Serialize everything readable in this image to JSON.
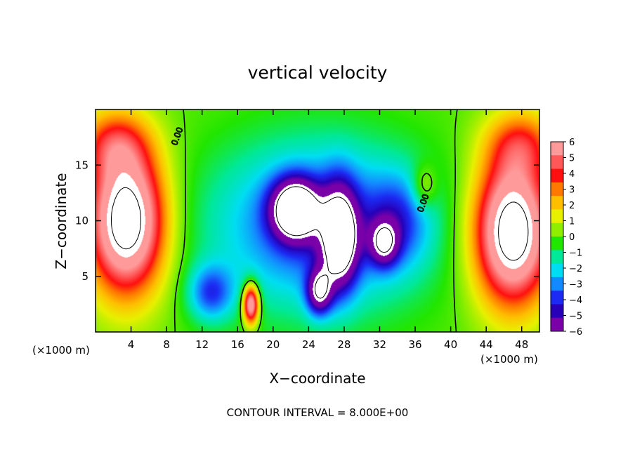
{
  "chart_data": {
    "type": "heatmap",
    "title": "vertical velocity",
    "xlabel": "X−coordinate",
    "ylabel": "Z−coordinate",
    "x_unit": "(×1000 m)",
    "y_unit": "(×1000 m)",
    "xlim": [
      0,
      50
    ],
    "ylim": [
      0,
      20
    ],
    "x_ticks": [
      "4",
      "8",
      "12",
      "16",
      "20",
      "24",
      "28",
      "32",
      "36",
      "40",
      "44",
      "48"
    ],
    "y_ticks": [
      "5",
      "10",
      "15"
    ],
    "footer": "CONTOUR INTERVAL = 8.000E+00",
    "contour_label": "0.00",
    "colorbar": {
      "levels": [
        "6",
        "5",
        "4",
        "3",
        "2",
        "1",
        "0",
        "−1",
        "−2",
        "−3",
        "−4",
        "−5",
        "−6"
      ],
      "colors": [
        "#ff9a9a",
        "#ff5858",
        "#ff1010",
        "#ff7800",
        "#ffbf00",
        "#e8f000",
        "#90ee00",
        "#22e600",
        "#00e898",
        "#00ddf2",
        "#1488ff",
        "#1c2af2",
        "#2700b8",
        "#7a00a8"
      ],
      "range": [
        -6,
        6
      ]
    },
    "features": [
      {
        "kind": "warm_plume",
        "x": 4.5,
        "z": 9.0,
        "peak": 9.0
      },
      {
        "kind": "warm_plume",
        "x": 47.0,
        "z": 8.0,
        "peak": 9.0
      },
      {
        "kind": "warm_cell",
        "x": 17.5,
        "z": 2.5,
        "peak": 6.0
      },
      {
        "kind": "cold_core",
        "x": 22.5,
        "z": 11.0,
        "peak": -13.0
      },
      {
        "kind": "cold_core",
        "x": 27.5,
        "z": 8.5,
        "peak": -12.0
      },
      {
        "kind": "cold_core",
        "x": 25.0,
        "z": 4.0,
        "peak": -9.0
      },
      {
        "kind": "cold_core",
        "x": 32.5,
        "z": 8.0,
        "peak": -8.0
      }
    ]
  }
}
